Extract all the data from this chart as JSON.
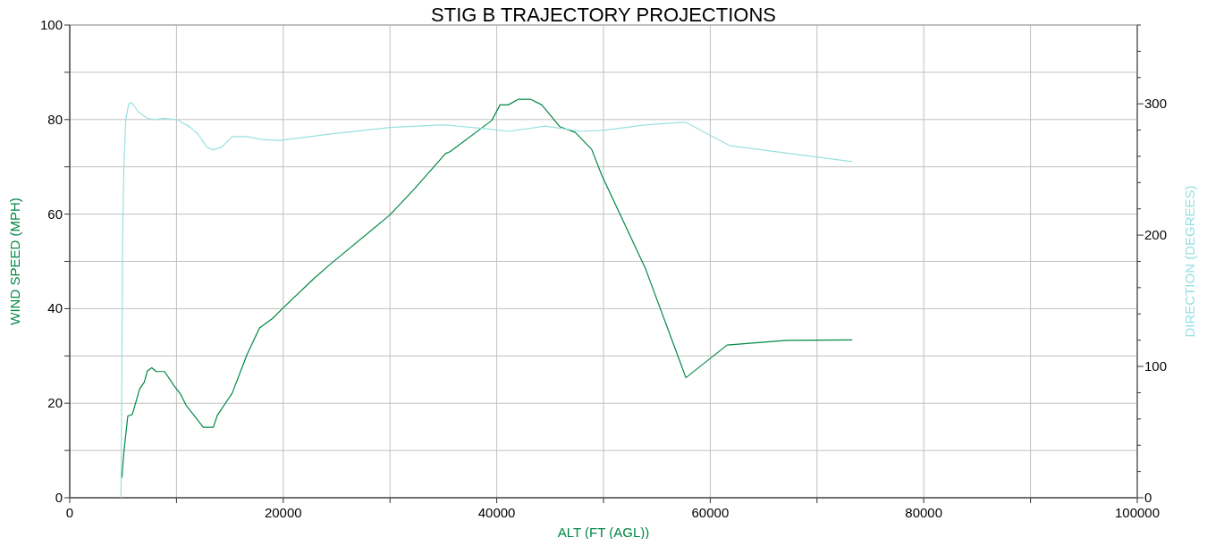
{
  "chart_data": {
    "type": "line",
    "title": "STIG B TRAJECTORY PROJECTIONS",
    "xlabel": "ALT (FT (AGL))",
    "ylabel": "WIND SPEED (MPH)",
    "y2label": "DIRECTION  (DEGREES)",
    "xlim": [
      0,
      100000
    ],
    "xticks": [
      0,
      {
        "value": 10000,
        "label": null
      },
      20000,
      {
        "value": 30000,
        "label": null
      },
      40000,
      {
        "value": 50000,
        "label": null
      },
      60000,
      {
        "value": 70000,
        "label": null
      },
      80000,
      {
        "value": 90000,
        "label": null
      },
      100000
    ],
    "ylim": [
      0,
      100
    ],
    "yticks": [
      0,
      {
        "value": 10,
        "label": null
      },
      20,
      {
        "value": 30,
        "label": null
      },
      40,
      {
        "value": 50,
        "label": null
      },
      60,
      {
        "value": 70,
        "label": null
      },
      80,
      {
        "value": 90,
        "label": null
      },
      100
    ],
    "y2lim": [
      0,
      360
    ],
    "y2ticks": [
      0,
      {
        "value": 20,
        "label": null
      },
      {
        "value": 40,
        "label": null
      },
      {
        "value": 60,
        "label": null
      },
      {
        "value": 80,
        "label": null
      },
      100,
      {
        "value": 120,
        "label": null
      },
      {
        "value": 140,
        "label": null
      },
      {
        "value": 160,
        "label": null
      },
      {
        "value": 180,
        "label": null
      },
      200,
      {
        "value": 220,
        "label": null
      },
      {
        "value": 240,
        "label": null
      },
      {
        "value": 260,
        "label": null
      },
      {
        "value": 280,
        "label": null
      },
      300,
      {
        "value": 320,
        "label": null
      },
      {
        "value": 340,
        "label": null
      },
      {
        "value": 360,
        "label": null
      }
    ],
    "grid": true,
    "marker": "none",
    "line_style": "solid",
    "series": [
      {
        "color": "#008844",
        "x": [
          4880,
          5080,
          5440,
          5860,
          6560,
          6980,
          7260,
          7680,
          8090,
          8880,
          9770,
          10410,
          10890,
          11860,
          12500,
          13450,
          13820,
          15210,
          16610,
          17780,
          18980,
          19960,
          22890,
          24460,
          29980,
          32270,
          35200,
          35620,
          39530,
          40310,
          41070,
          42040,
          43160,
          44220,
          45900,
          47350,
          48890,
          49860,
          53910,
          57720,
          61580,
          67160,
          73300
        ],
        "values": [
          4.2,
          9.8,
          17.3,
          17.6,
          23.1,
          24.4,
          26.8,
          27.5,
          26.7,
          26.7,
          23.7,
          21.8,
          19.6,
          16.8,
          14.9,
          14.9,
          17.4,
          22.1,
          30.3,
          35.9,
          37.9,
          40.1,
          46.4,
          49.5,
          59.8,
          65.3,
          72.8,
          73.2,
          79.8,
          83.1,
          83.1,
          84.3,
          84.3,
          83.1,
          78.5,
          77.3,
          73.7,
          68.1,
          48.6,
          25.4,
          32.3,
          33.3,
          33.4
        ]
      },
      {
        "color": "#99e0e0",
        "axis": "y2",
        "x": [
          4800,
          4880,
          4960,
          5080,
          5250,
          5530,
          5780,
          6420,
          7260,
          7950,
          8790,
          10050,
          11310,
          12010,
          12840,
          13400,
          14240,
          15210,
          16610,
          17870,
          19550,
          24460,
          30040,
          35070,
          38970,
          41070,
          44560,
          47910,
          50140,
          54050,
          57680,
          61870,
          73300
        ],
        "values": [
          0,
          95,
          204,
          254,
          288,
          300,
          301,
          294,
          289,
          288,
          289,
          288,
          282,
          277,
          267,
          265,
          267,
          275,
          275,
          273,
          272,
          277,
          282,
          284,
          281,
          279,
          283,
          279,
          280,
          284,
          286,
          268,
          256
        ]
      }
    ]
  }
}
